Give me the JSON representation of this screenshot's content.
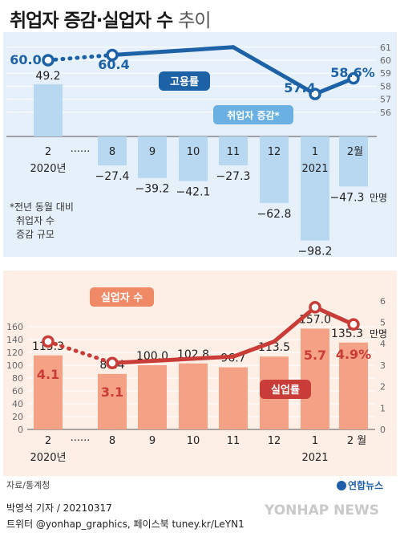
{
  "title": {
    "main": "취업자 증감·실업자 수",
    "sub": "추이"
  },
  "chart_data": [
    {
      "type": "bar+line",
      "categories": [
        "2",
        "8",
        "9",
        "10",
        "11",
        "12",
        "1",
        "2월"
      ],
      "year_labels": [
        "2020년",
        "2021"
      ],
      "gap_marker": "······",
      "series": [
        {
          "name": "취업자 증감*",
          "values": [
            49.2,
            -27.4,
            -39.2,
            -42.1,
            -27.3,
            -62.8,
            -98.2,
            -47.3
          ],
          "labels": [
            "49.2",
            "−27.4",
            "−39.2",
            "−42.1",
            "−27.3",
            "−62.8",
            "−98.2",
            "−47.3"
          ],
          "color": "#b8d8f2"
        },
        {
          "name": "고용률",
          "values": [
            60.0,
            60.4,
            null,
            null,
            61.0,
            null,
            57.4,
            58.6
          ],
          "labels": [
            "60.0",
            "60.4",
            "",
            "",
            "",
            "",
            "57.4",
            "58.6%"
          ],
          "color": "#1d62a6"
        }
      ],
      "unit_label": "만명",
      "right_axis": {
        "ticks": [
          "61",
          "60",
          "59",
          "58",
          "57",
          "56"
        ]
      },
      "left_ticks": [],
      "footnote": [
        "*전년 동월 대비",
        "취업자 수",
        "증감 규모"
      ]
    },
    {
      "type": "bar+line",
      "categories": [
        "2",
        "8",
        "9",
        "10",
        "11",
        "12",
        "1",
        "2 월"
      ],
      "year_labels": [
        "2020년",
        "2021"
      ],
      "gap_marker": "······",
      "series": [
        {
          "name": "실업자 수",
          "values": [
            115.3,
            86.4,
            100.0,
            102.8,
            96.7,
            113.5,
            157.0,
            135.3
          ],
          "labels": [
            "115.3",
            "86.4",
            "100.0",
            "102.8",
            "96.7",
            "113.5",
            "157.0",
            "135.3"
          ],
          "color": "#f4a185"
        },
        {
          "name": "실업률",
          "values": [
            4.1,
            3.1,
            null,
            null,
            3.4,
            4.1,
            5.7,
            4.9
          ],
          "labels": [
            "4.1",
            "3.1",
            "",
            "",
            "",
            "",
            "5.7",
            "4.9%"
          ],
          "color": "#c93c38"
        }
      ],
      "unit_label": "만명",
      "left_axis": {
        "ticks": [
          "160",
          "140",
          "120",
          "100",
          "80",
          "60",
          "40",
          "20",
          "0"
        ]
      },
      "right_axis": {
        "ticks": [
          "6",
          "5",
          "4",
          "3",
          "2",
          "1",
          "0"
        ]
      }
    }
  ],
  "footer": {
    "source": "자료/통계청",
    "credit_line1": "박영석 기자 / 20210317",
    "credit_line2": "트위터 @yonhap_graphics, 페이스북 tuney.kr/LeYN1",
    "agency": "연합뉴스",
    "watermark": "YONHAP NEWS"
  }
}
